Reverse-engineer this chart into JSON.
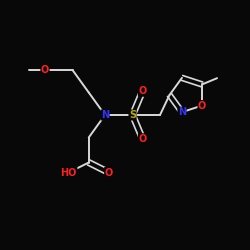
{
  "background": "#080808",
  "bond_color": "#d8d8d8",
  "atom_colors": {
    "O": "#ff2020",
    "N": "#3333ff",
    "S": "#bbaa00",
    "C": "#d8d8d8"
  },
  "font_size": 7.0
}
